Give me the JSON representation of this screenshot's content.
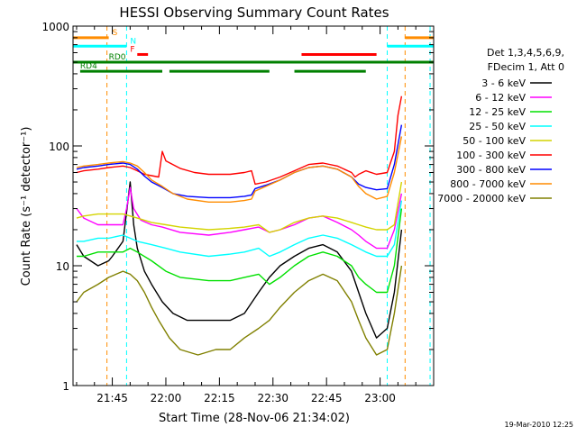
{
  "chart_data": {
    "type": "line",
    "title": "HESSI Observing Summary Count Rates",
    "xlabel": "Start Time (28-Nov-06 21:34:02)",
    "ylabel": "Count Rate (s⁻¹ detector⁻¹)",
    "footer": "19-Mar-2010 12:25",
    "x_units": "minutes after 21:34:02",
    "xlim": [
      0,
      101
    ],
    "ylim": [
      1,
      1000
    ],
    "y_scale": "log",
    "x_ticks": [
      {
        "t": 11,
        "label": "21:45"
      },
      {
        "t": 26,
        "label": "22:00"
      },
      {
        "t": 41,
        "label": "22:15"
      },
      {
        "t": 56,
        "label": "22:30"
      },
      {
        "t": 71,
        "label": "22:45"
      },
      {
        "t": 86,
        "label": "23:00"
      }
    ],
    "y_ticks": [
      {
        "v": 1,
        "label": "1"
      },
      {
        "v": 10,
        "label": "10"
      },
      {
        "v": 100,
        "label": "100"
      },
      {
        "v": 1000,
        "label": "1000"
      }
    ],
    "legend": {
      "header": [
        "Det 1,3,4,5,6,9,",
        "FDecim 1, Att 0"
      ],
      "placement": "right"
    },
    "series": [
      {
        "name": "3 - 6 keV",
        "color": "#000000",
        "points": [
          [
            1,
            15
          ],
          [
            3,
            12
          ],
          [
            7,
            10
          ],
          [
            10,
            11
          ],
          [
            11,
            12
          ],
          [
            14,
            16
          ],
          [
            15,
            28
          ],
          [
            16,
            50
          ],
          [
            17,
            22
          ],
          [
            18,
            14
          ],
          [
            20,
            9
          ],
          [
            22,
            7
          ],
          [
            25,
            5
          ],
          [
            28,
            4
          ],
          [
            32,
            3.5
          ],
          [
            38,
            3.5
          ],
          [
            44,
            3.5
          ],
          [
            48,
            4
          ],
          [
            52,
            6
          ],
          [
            55,
            8
          ],
          [
            58,
            10
          ],
          [
            62,
            12
          ],
          [
            66,
            14
          ],
          [
            70,
            15
          ],
          [
            74,
            13
          ],
          [
            78,
            9
          ],
          [
            80,
            6
          ],
          [
            82,
            4
          ],
          [
            85,
            2.5
          ],
          [
            88,
            3
          ],
          [
            90,
            6
          ],
          [
            92,
            20
          ]
        ]
      },
      {
        "name": "6 - 12 keV",
        "color": "#ff00ff",
        "points": [
          [
            1,
            30
          ],
          [
            3,
            25
          ],
          [
            7,
            22
          ],
          [
            10,
            22
          ],
          [
            14,
            22
          ],
          [
            15,
            30
          ],
          [
            16,
            45
          ],
          [
            17,
            30
          ],
          [
            19,
            24
          ],
          [
            22,
            22
          ],
          [
            25,
            21
          ],
          [
            30,
            19
          ],
          [
            38,
            18
          ],
          [
            44,
            19
          ],
          [
            48,
            20
          ],
          [
            52,
            21
          ],
          [
            55,
            19
          ],
          [
            58,
            20
          ],
          [
            62,
            22
          ],
          [
            66,
            25
          ],
          [
            70,
            26
          ],
          [
            74,
            23
          ],
          [
            78,
            20
          ],
          [
            80,
            18
          ],
          [
            82,
            16
          ],
          [
            85,
            14
          ],
          [
            88,
            14
          ],
          [
            90,
            20
          ],
          [
            92,
            40
          ]
        ]
      },
      {
        "name": "12 - 25 keV",
        "color": "#00e000",
        "points": [
          [
            1,
            12
          ],
          [
            3,
            12
          ],
          [
            7,
            13
          ],
          [
            10,
            13
          ],
          [
            14,
            13
          ],
          [
            16,
            14
          ],
          [
            18,
            13
          ],
          [
            22,
            11
          ],
          [
            26,
            9
          ],
          [
            30,
            8
          ],
          [
            38,
            7.5
          ],
          [
            44,
            7.5
          ],
          [
            48,
            8
          ],
          [
            52,
            8.5
          ],
          [
            55,
            7
          ],
          [
            58,
            8
          ],
          [
            62,
            10
          ],
          [
            66,
            12
          ],
          [
            70,
            13
          ],
          [
            74,
            12
          ],
          [
            78,
            10
          ],
          [
            80,
            8
          ],
          [
            82,
            7
          ],
          [
            85,
            6
          ],
          [
            88,
            6
          ],
          [
            90,
            10
          ],
          [
            92,
            30
          ]
        ]
      },
      {
        "name": "25 - 50 keV",
        "color": "#00ffff",
        "points": [
          [
            1,
            16
          ],
          [
            3,
            16
          ],
          [
            7,
            17
          ],
          [
            10,
            17
          ],
          [
            14,
            18
          ],
          [
            16,
            17
          ],
          [
            18,
            16
          ],
          [
            22,
            15
          ],
          [
            26,
            14
          ],
          [
            30,
            13
          ],
          [
            38,
            12
          ],
          [
            44,
            12.5
          ],
          [
            48,
            13
          ],
          [
            52,
            14
          ],
          [
            55,
            12
          ],
          [
            58,
            13
          ],
          [
            62,
            15
          ],
          [
            66,
            17
          ],
          [
            70,
            18
          ],
          [
            74,
            17
          ],
          [
            78,
            15
          ],
          [
            80,
            14
          ],
          [
            82,
            13
          ],
          [
            85,
            12
          ],
          [
            88,
            12
          ],
          [
            90,
            15
          ],
          [
            92,
            35
          ]
        ]
      },
      {
        "name": "50 - 100 keV",
        "color": "#d4d400",
        "points": [
          [
            1,
            25
          ],
          [
            3,
            26
          ],
          [
            7,
            27
          ],
          [
            10,
            27
          ],
          [
            14,
            27
          ],
          [
            16,
            26
          ],
          [
            18,
            25
          ],
          [
            22,
            23
          ],
          [
            26,
            22
          ],
          [
            30,
            21
          ],
          [
            38,
            20
          ],
          [
            44,
            20.5
          ],
          [
            48,
            21
          ],
          [
            52,
            22
          ],
          [
            55,
            19
          ],
          [
            58,
            20
          ],
          [
            62,
            23
          ],
          [
            66,
            25
          ],
          [
            70,
            26
          ],
          [
            74,
            25
          ],
          [
            78,
            23
          ],
          [
            80,
            22
          ],
          [
            82,
            21
          ],
          [
            85,
            20
          ],
          [
            88,
            20
          ],
          [
            90,
            22
          ],
          [
            92,
            50
          ]
        ]
      },
      {
        "name": "100 - 300 keV",
        "color": "#ff0000",
        "points": [
          [
            1,
            60
          ],
          [
            3,
            62
          ],
          [
            7,
            64
          ],
          [
            10,
            66
          ],
          [
            14,
            68
          ],
          [
            16,
            66
          ],
          [
            18,
            62
          ],
          [
            20,
            58
          ],
          [
            24,
            55
          ],
          [
            25,
            90
          ],
          [
            26,
            75
          ],
          [
            30,
            65
          ],
          [
            34,
            60
          ],
          [
            38,
            58
          ],
          [
            44,
            58
          ],
          [
            48,
            60
          ],
          [
            50,
            62
          ],
          [
            51,
            48
          ],
          [
            54,
            50
          ],
          [
            58,
            55
          ],
          [
            62,
            62
          ],
          [
            66,
            70
          ],
          [
            70,
            72
          ],
          [
            74,
            68
          ],
          [
            78,
            60
          ],
          [
            79,
            55
          ],
          [
            80,
            58
          ],
          [
            82,
            62
          ],
          [
            85,
            58
          ],
          [
            88,
            60
          ],
          [
            90,
            90
          ],
          [
            91,
            180
          ],
          [
            92,
            260
          ]
        ]
      },
      {
        "name": "300 - 800 keV",
        "color": "#0000ff",
        "points": [
          [
            1,
            64
          ],
          [
            3,
            66
          ],
          [
            7,
            68
          ],
          [
            10,
            70
          ],
          [
            14,
            72
          ],
          [
            16,
            70
          ],
          [
            18,
            64
          ],
          [
            20,
            56
          ],
          [
            22,
            50
          ],
          [
            25,
            45
          ],
          [
            28,
            40
          ],
          [
            32,
            38
          ],
          [
            38,
            37
          ],
          [
            44,
            37
          ],
          [
            48,
            38
          ],
          [
            50,
            39
          ],
          [
            51,
            44
          ],
          [
            54,
            47
          ],
          [
            58,
            52
          ],
          [
            62,
            60
          ],
          [
            66,
            66
          ],
          [
            70,
            68
          ],
          [
            74,
            64
          ],
          [
            78,
            55
          ],
          [
            80,
            48
          ],
          [
            82,
            45
          ],
          [
            85,
            43
          ],
          [
            88,
            44
          ],
          [
            90,
            70
          ],
          [
            92,
            150
          ]
        ]
      },
      {
        "name": "800 - 7000 keV",
        "color": "#ff8c00",
        "points": [
          [
            1,
            66
          ],
          [
            3,
            68
          ],
          [
            7,
            70
          ],
          [
            10,
            72
          ],
          [
            14,
            74
          ],
          [
            16,
            72
          ],
          [
            18,
            68
          ],
          [
            20,
            60
          ],
          [
            22,
            52
          ],
          [
            25,
            46
          ],
          [
            28,
            40
          ],
          [
            32,
            36
          ],
          [
            38,
            34
          ],
          [
            44,
            34
          ],
          [
            48,
            35
          ],
          [
            50,
            36
          ],
          [
            51,
            42
          ],
          [
            54,
            46
          ],
          [
            58,
            52
          ],
          [
            62,
            60
          ],
          [
            66,
            66
          ],
          [
            70,
            68
          ],
          [
            74,
            64
          ],
          [
            78,
            55
          ],
          [
            80,
            46
          ],
          [
            82,
            40
          ],
          [
            85,
            36
          ],
          [
            88,
            38
          ],
          [
            90,
            60
          ],
          [
            92,
            120
          ]
        ]
      },
      {
        "name": "7000 - 20000 keV",
        "color": "#808000",
        "points": [
          [
            1,
            5
          ],
          [
            3,
            6
          ],
          [
            7,
            7
          ],
          [
            10,
            8
          ],
          [
            14,
            9
          ],
          [
            16,
            8.5
          ],
          [
            18,
            7.5
          ],
          [
            20,
            6
          ],
          [
            22,
            4.5
          ],
          [
            24,
            3.5
          ],
          [
            27,
            2.5
          ],
          [
            30,
            2
          ],
          [
            35,
            1.8
          ],
          [
            40,
            2
          ],
          [
            44,
            2
          ],
          [
            48,
            2.5
          ],
          [
            52,
            3
          ],
          [
            55,
            3.5
          ],
          [
            58,
            4.5
          ],
          [
            62,
            6
          ],
          [
            66,
            7.5
          ],
          [
            70,
            8.5
          ],
          [
            74,
            7.5
          ],
          [
            78,
            5
          ],
          [
            80,
            3.5
          ],
          [
            82,
            2.5
          ],
          [
            85,
            1.8
          ],
          [
            88,
            2
          ],
          [
            90,
            4
          ],
          [
            92,
            10
          ]
        ]
      }
    ],
    "state_bars": [
      {
        "label": "S",
        "color": "#ff8c00",
        "v": 800,
        "segments": [
          [
            0,
            10
          ],
          [
            93,
            101
          ]
        ]
      },
      {
        "label": "N",
        "color": "#00ffff",
        "v": 680,
        "segments": [
          [
            0,
            15
          ],
          [
            88,
            101
          ]
        ]
      },
      {
        "label": "F",
        "color": "#ff0000",
        "v": 580,
        "segments": [
          [
            18,
            21
          ],
          [
            64,
            85
          ]
        ]
      },
      {
        "label": "RD0",
        "color": "#008000",
        "v": 500,
        "segments": [
          [
            0,
            101
          ]
        ]
      },
      {
        "label": "RD4",
        "color": "#008000",
        "v": 420,
        "segments": [
          [
            2,
            25
          ],
          [
            27,
            55
          ],
          [
            62,
            82
          ]
        ]
      }
    ],
    "vlines": [
      {
        "t": 9.5,
        "color": "#ff8c00"
      },
      {
        "t": 15,
        "color": "#00ffff"
      },
      {
        "t": 88,
        "color": "#00ffff"
      },
      {
        "t": 93,
        "color": "#ff8c00"
      },
      {
        "t": 100,
        "color": "#00ffff"
      }
    ]
  }
}
